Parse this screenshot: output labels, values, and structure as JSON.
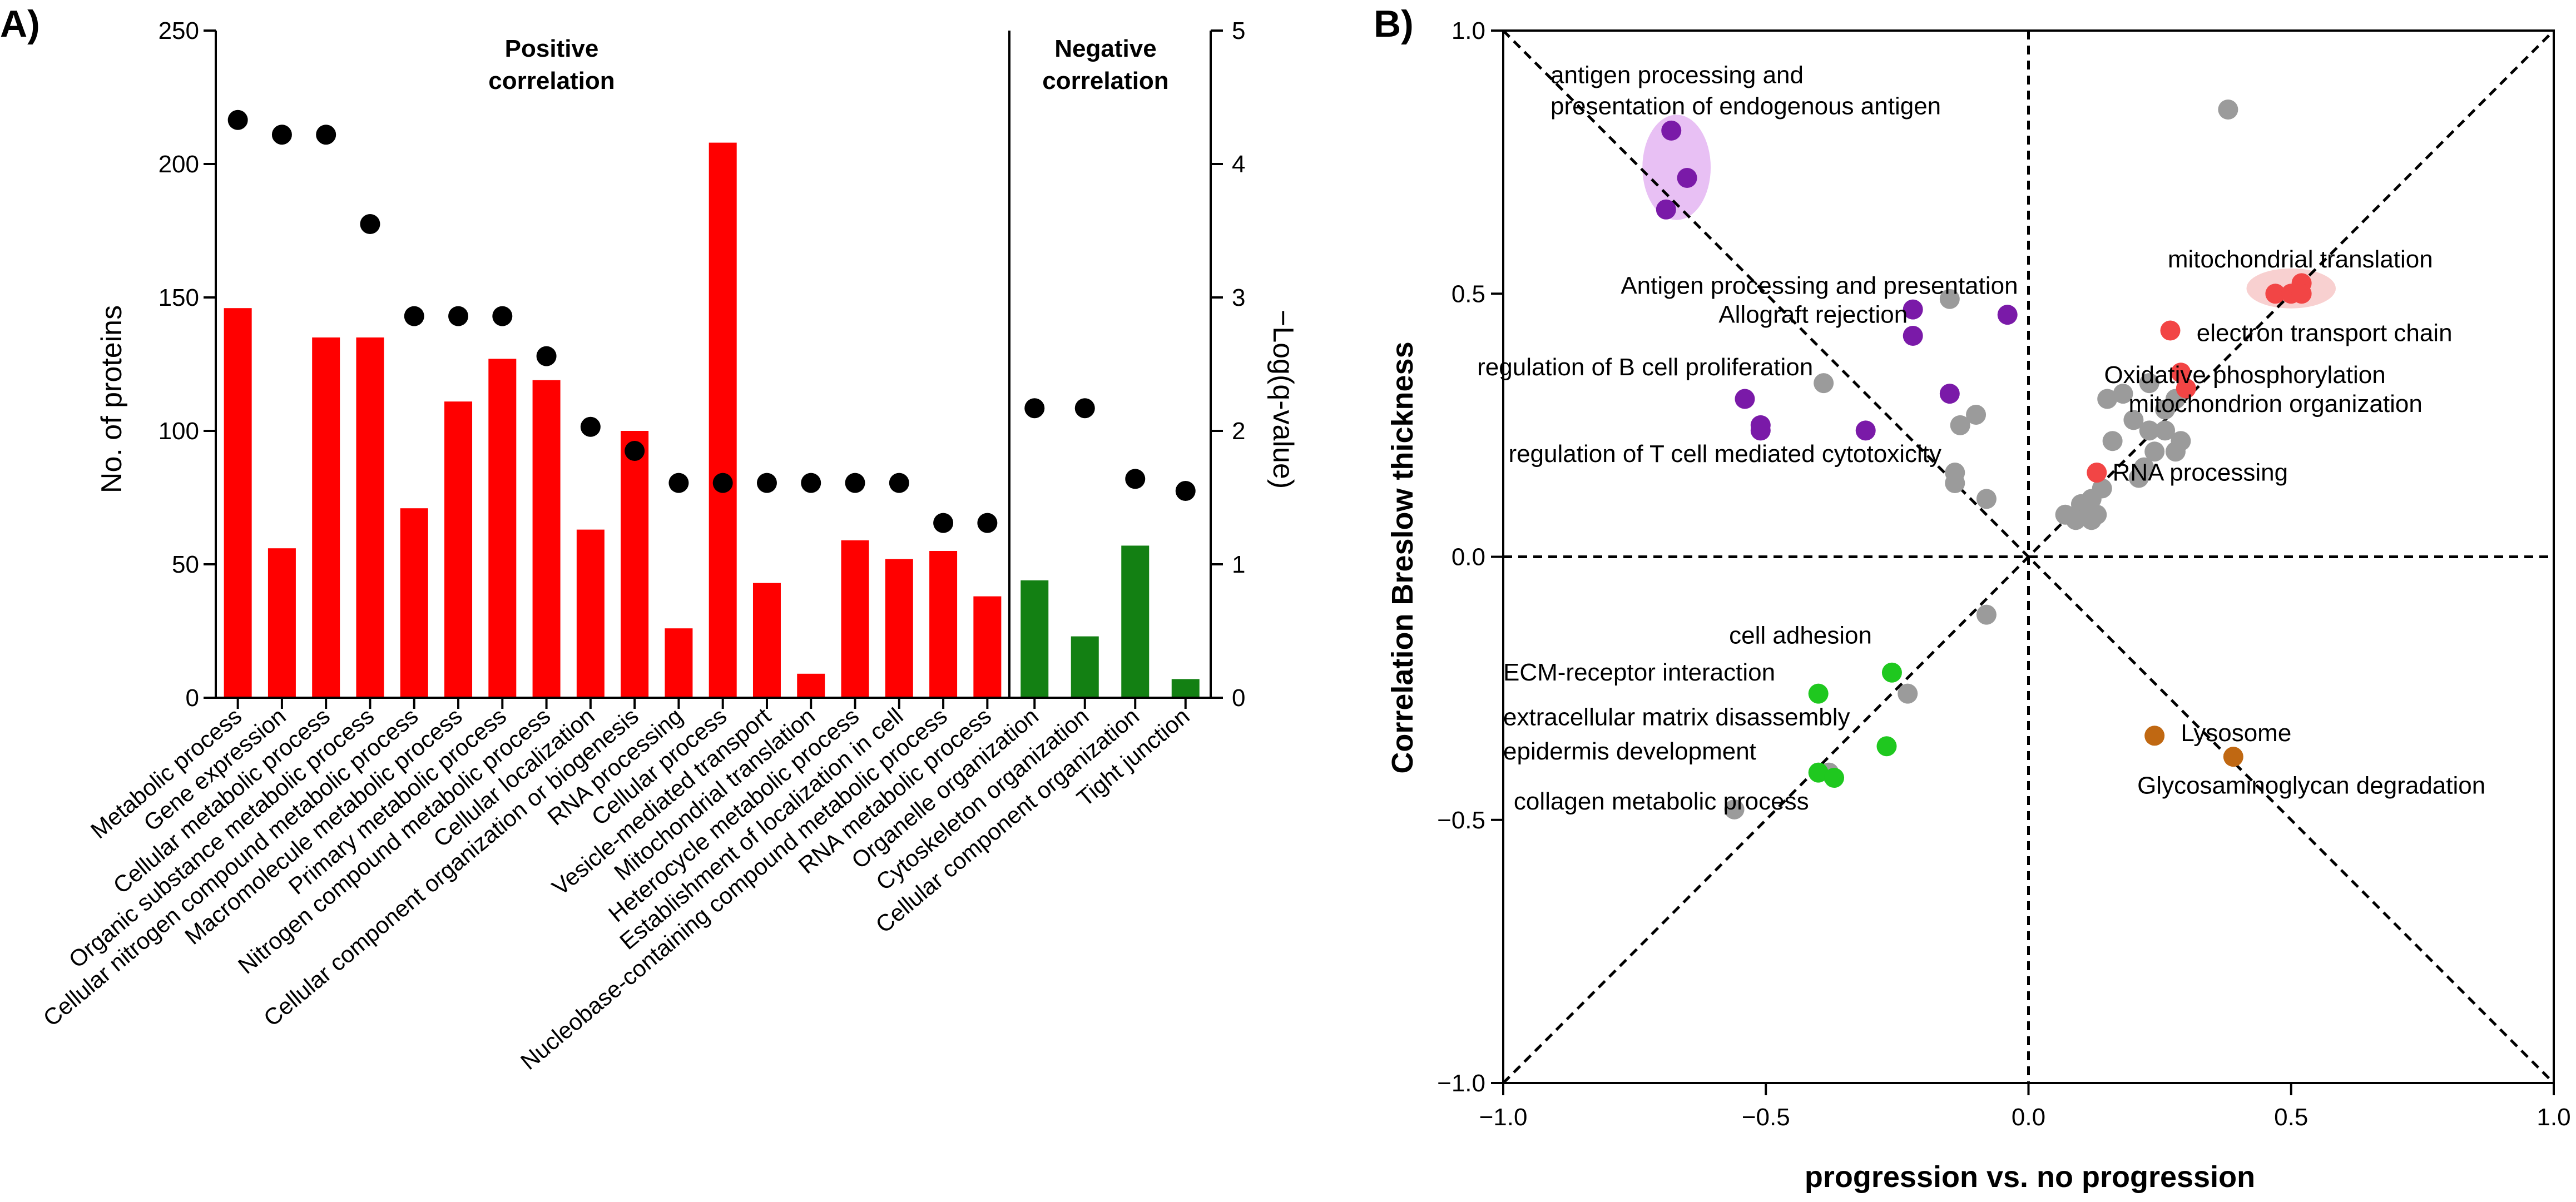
{
  "panel_labels": {
    "a": "A)",
    "b": "B)"
  },
  "chart_data": [
    {
      "type": "bar",
      "title": "",
      "xlabel": "",
      "ylabel": "No. of proteins",
      "y2label": "−Log(q-value)",
      "ylim": [
        0,
        250
      ],
      "y2lim": [
        0,
        5
      ],
      "yticks": [
        "0",
        "50",
        "100",
        "150",
        "200",
        "250"
      ],
      "y2ticks": [
        "0",
        "1",
        "2",
        "3",
        "4",
        "5"
      ],
      "regions": [
        {
          "label_line1": "Positive",
          "label_line2": "correlation",
          "categories_from": 0,
          "categories_to": 17,
          "color": "#ff0000"
        },
        {
          "label_line1": "Negative",
          "label_line2": "correlation",
          "categories_from": 18,
          "categories_to": 21,
          "color": "#138013"
        }
      ],
      "categories": [
        "Metabolic process",
        "Gene expression",
        "Cellular metabolic process",
        "Organic substance metabolic process",
        "Cellular nitrogen compound metabolic process",
        "Macromolecule metabolic process",
        "Primary metabolic process",
        "Nitrogen compound metabolic process",
        "Cellular localization",
        "Cellular component organization or biogenesis",
        "RNA processing",
        "Cellular process",
        "Vesicle-mediated transport",
        "Mitochondrial translation",
        "Heterocycle metabolic process",
        "Establishment of localization in cell",
        "Nucleobase-containing compound metabolic process",
        "RNA metabolic process",
        "Organelle organization",
        "Cytoskeleton organization",
        "Cellular component organization",
        "Tight junction"
      ],
      "series": [
        {
          "name": "No. of proteins",
          "kind": "bar",
          "axis": "left",
          "values": [
            146,
            56,
            135,
            135,
            71,
            111,
            127,
            119,
            63,
            100,
            26,
            208,
            43,
            9,
            59,
            52,
            55,
            38,
            44,
            23,
            57,
            7
          ]
        },
        {
          "name": "−Log(q-value)",
          "kind": "dot",
          "axis": "right",
          "values": [
            4.33,
            4.22,
            4.22,
            3.55,
            2.86,
            2.86,
            2.86,
            2.56,
            2.03,
            1.85,
            1.61,
            1.61,
            1.61,
            1.61,
            1.61,
            1.61,
            1.31,
            1.31,
            2.17,
            2.17,
            1.64,
            1.55
          ]
        }
      ]
    },
    {
      "type": "scatter",
      "title": "",
      "xlabel": "progression vs. no progression",
      "ylabel": "Correlation Breslow thickness",
      "xlim": [
        -1.0,
        1.0
      ],
      "ylim": [
        -1.0,
        1.0
      ],
      "xticks": [
        "−1.0",
        "−0.5",
        "0.0",
        "0.5",
        "1.0"
      ],
      "yticks": [
        "−1.0",
        "−0.5",
        "0.0",
        "0.5",
        "1.0"
      ],
      "colors": {
        "gray": "#9b9b9b",
        "purple": "#7a1aa8",
        "red": "#f24545",
        "green": "#1fc81f",
        "brown": "#c06812"
      },
      "series": [
        {
          "name": "gray",
          "color": "#9b9b9b",
          "points": [
            [
              0.38,
              0.85
            ],
            [
              -0.15,
              0.49
            ],
            [
              -0.39,
              0.33
            ],
            [
              -0.13,
              0.25
            ],
            [
              -0.1,
              0.27
            ],
            [
              -0.14,
              0.16
            ],
            [
              -0.14,
              0.14
            ],
            [
              -0.08,
              0.11
            ],
            [
              0.18,
              0.31
            ],
            [
              0.15,
              0.3
            ],
            [
              0.23,
              0.33
            ],
            [
              0.2,
              0.26
            ],
            [
              0.24,
              0.2
            ],
            [
              0.26,
              0.28
            ],
            [
              0.28,
              0.3
            ],
            [
              0.29,
              0.22
            ],
            [
              0.28,
              0.2
            ],
            [
              0.23,
              0.24
            ],
            [
              0.26,
              0.24
            ],
            [
              0.16,
              0.22
            ],
            [
              0.22,
              0.17
            ],
            [
              0.21,
              0.15
            ],
            [
              0.14,
              0.13
            ],
            [
              0.12,
              0.11
            ],
            [
              0.1,
              0.1
            ],
            [
              0.11,
              0.09
            ],
            [
              0.07,
              0.08
            ],
            [
              0.13,
              0.08
            ],
            [
              0.09,
              0.07
            ],
            [
              0.12,
              0.07
            ],
            [
              -0.08,
              -0.11
            ],
            [
              -0.23,
              -0.26
            ],
            [
              -0.38,
              -0.41
            ],
            [
              -0.56,
              -0.48
            ]
          ]
        },
        {
          "name": "purple",
          "color": "#7a1aa8",
          "points": [
            [
              -0.68,
              0.81
            ],
            [
              -0.65,
              0.72
            ],
            [
              -0.69,
              0.66
            ],
            [
              -0.22,
              0.47
            ],
            [
              -0.04,
              0.46
            ],
            [
              -0.22,
              0.42
            ],
            [
              -0.15,
              0.31
            ],
            [
              -0.54,
              0.3
            ],
            [
              -0.51,
              0.25
            ],
            [
              -0.51,
              0.24
            ],
            [
              -0.31,
              0.24
            ]
          ]
        },
        {
          "name": "red",
          "color": "#f24545",
          "points": [
            [
              0.47,
              0.5
            ],
            [
              0.5,
              0.5
            ],
            [
              0.52,
              0.52
            ],
            [
              0.52,
              0.5
            ],
            [
              0.27,
              0.43
            ],
            [
              0.29,
              0.35
            ],
            [
              0.3,
              0.32
            ],
            [
              0.13,
              0.16
            ]
          ]
        },
        {
          "name": "green",
          "color": "#1fc81f",
          "points": [
            [
              -0.4,
              -0.26
            ],
            [
              -0.26,
              -0.22
            ],
            [
              -0.27,
              -0.36
            ],
            [
              -0.4,
              -0.41
            ],
            [
              -0.37,
              -0.42
            ]
          ]
        },
        {
          "name": "brown",
          "color": "#c06812",
          "points": [
            [
              0.24,
              -0.34
            ],
            [
              0.39,
              -0.38
            ]
          ]
        }
      ],
      "highlights": [
        {
          "name": "antigen-cluster",
          "color": "#e8c0f4",
          "cx": -0.67,
          "cy": 0.74,
          "rx": 0.065,
          "ry": 0.1
        },
        {
          "name": "mitochondrial-cluster",
          "color": "#f8d0d0",
          "cx": 0.5,
          "cy": 0.51,
          "rx": 0.085,
          "ry": 0.038
        }
      ],
      "annotations": [
        {
          "name": "antigen-endogenous",
          "lines": [
            "antigen processing and",
            "presentation of endogenous antigen"
          ],
          "x": -0.91,
          "y": 0.9,
          "anchor": "start"
        },
        {
          "name": "antigen-presentation",
          "lines": [
            "Antigen processing and presentation"
          ],
          "x": -0.02,
          "y": 0.5,
          "anchor": "end"
        },
        {
          "name": "allograft-rejection",
          "lines": [
            "Allograft rejection"
          ],
          "x": -0.23,
          "y": 0.445,
          "anchor": "end"
        },
        {
          "name": "b-cell-proliferation",
          "lines": [
            "regulation of B cell proliferation"
          ],
          "x": -0.41,
          "y": 0.345,
          "anchor": "end"
        },
        {
          "name": "t-cell-cytotoxicity",
          "lines": [
            "regulation of T cell mediated cytotoxicity"
          ],
          "x": -0.99,
          "y": 0.18,
          "anchor": "start"
        },
        {
          "name": "mitochondrial-translation",
          "lines": [
            "mitochondrial translation"
          ],
          "x": 0.77,
          "y": 0.55,
          "anchor": "end"
        },
        {
          "name": "electron-transport-chain",
          "lines": [
            "electron transport chain"
          ],
          "x": 0.32,
          "y": 0.41,
          "anchor": "start"
        },
        {
          "name": "oxidative-phosphorylation",
          "lines": [
            "Oxidative phosphorylation"
          ],
          "x": 0.68,
          "y": 0.33,
          "anchor": "end"
        },
        {
          "name": "mitochondrion-organization",
          "lines": [
            "mitochondrion organization"
          ],
          "x": 0.75,
          "y": 0.275,
          "anchor": "end"
        },
        {
          "name": "rna-processing",
          "lines": [
            "RNA processing"
          ],
          "x": 0.16,
          "y": 0.145,
          "anchor": "start"
        },
        {
          "name": "cell-adhesion",
          "lines": [
            "cell adhesion"
          ],
          "x": -0.57,
          "y": -0.165,
          "anchor": "start"
        },
        {
          "name": "ecm-receptor",
          "lines": [
            "ECM-receptor interaction"
          ],
          "x": -1.0,
          "y": -0.235,
          "anchor": "start"
        },
        {
          "name": "ecm-disassembly",
          "lines": [
            "extracellular matrix disassembly"
          ],
          "x": -1.0,
          "y": -0.32,
          "anchor": "start"
        },
        {
          "name": "epidermis-development",
          "lines": [
            "epidermis development"
          ],
          "x": -1.0,
          "y": -0.385,
          "anchor": "start"
        },
        {
          "name": "collagen-metabolic",
          "lines": [
            "collagen metabolic process"
          ],
          "x": -0.98,
          "y": -0.48,
          "anchor": "start"
        },
        {
          "name": "lysosome",
          "lines": [
            "Lysosome"
          ],
          "x": 0.29,
          "y": -0.35,
          "anchor": "start"
        },
        {
          "name": "glycosaminoglycan-degradation",
          "lines": [
            "Glycosaminoglycan degradation"
          ],
          "x": 0.87,
          "y": -0.45,
          "anchor": "end"
        }
      ]
    }
  ]
}
